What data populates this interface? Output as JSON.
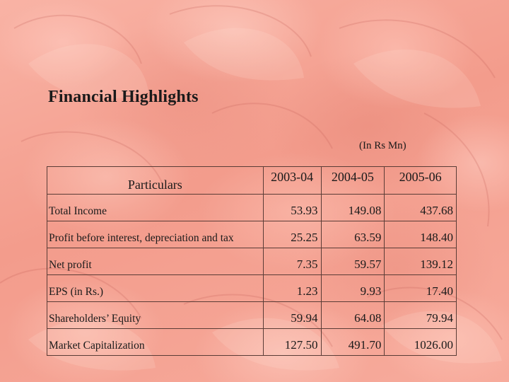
{
  "slide": {
    "title": "Financial Highlights",
    "unit_note": "(In Rs Mn)"
  },
  "table": {
    "header_label": "Particulars",
    "years": [
      "2003-04",
      "2004-05",
      "2005-06"
    ],
    "rows": [
      {
        "label": "Total Income",
        "values": [
          "53.93",
          "149.08",
          "437.68"
        ]
      },
      {
        "label": "Profit before interest, depreciation and tax",
        "values": [
          "25.25",
          "63.59",
          "148.40"
        ]
      },
      {
        "label": "Net profit",
        "values": [
          "7.35",
          "59.57",
          "139.12"
        ]
      },
      {
        "label": "EPS (in Rs.)",
        "values": [
          "1.23",
          "9.93",
          "17.40"
        ]
      },
      {
        "label": "Shareholders’ Equity",
        "values": [
          "59.94",
          "64.08",
          "79.94"
        ]
      },
      {
        "label": "Market Capitalization",
        "values": [
          "127.50",
          "491.70",
          "1026.00"
        ]
      }
    ]
  },
  "colors": {
    "background": "#f6a596",
    "text": "#1a1a1a",
    "border": "#5a3c36"
  }
}
